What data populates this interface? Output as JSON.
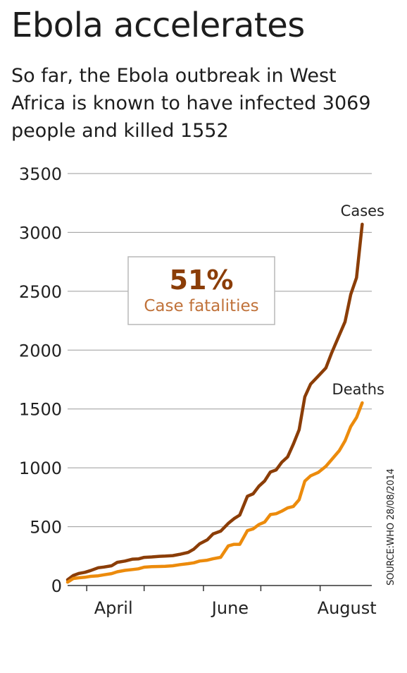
{
  "title": "Ebola accelerates",
  "subtitle": "So far, the Ebola outbreak in West Africa is known to have infected 3069 people and killed 1552",
  "source": "SOURCE:WHO 28/08/2014",
  "callout": {
    "value": "51%",
    "label": "Case fatalities",
    "value_color": "#8b3d07",
    "label_color": "#c0723a"
  },
  "chart_data": {
    "type": "line",
    "ylim": [
      0,
      3500
    ],
    "yticks": [
      0,
      500,
      1000,
      1500,
      2000,
      2500,
      3000,
      3500
    ],
    "xlim": [
      "2014-03-22",
      "2014-08-28"
    ],
    "xticks": [
      {
        "label": "April",
        "date": "2014-04-15"
      },
      {
        "label": "June",
        "date": "2014-06-15"
      },
      {
        "label": "August",
        "date": "2014-08-15"
      }
    ],
    "month_boundaries": [
      "2014-04-01",
      "2014-05-01",
      "2014-06-01",
      "2014-07-01",
      "2014-08-01"
    ],
    "grid": true,
    "series": [
      {
        "name": "Cases",
        "color": "#8b3d07",
        "points": [
          [
            "2014-03-22",
            49
          ],
          [
            "2014-03-25",
            86
          ],
          [
            "2014-03-28",
            103
          ],
          [
            "2014-03-31",
            112
          ],
          [
            "2014-04-03",
            127
          ],
          [
            "2014-04-07",
            151
          ],
          [
            "2014-04-10",
            157
          ],
          [
            "2014-04-14",
            168
          ],
          [
            "2014-04-17",
            197
          ],
          [
            "2014-04-21",
            208
          ],
          [
            "2014-04-25",
            224
          ],
          [
            "2014-04-28",
            226
          ],
          [
            "2014-05-01",
            239
          ],
          [
            "2014-05-05",
            243
          ],
          [
            "2014-05-09",
            248
          ],
          [
            "2014-05-12",
            250
          ],
          [
            "2014-05-16",
            254
          ],
          [
            "2014-05-20",
            266
          ],
          [
            "2014-05-24",
            281
          ],
          [
            "2014-05-27",
            309
          ],
          [
            "2014-05-30",
            354
          ],
          [
            "2014-06-03",
            388
          ],
          [
            "2014-06-06",
            438
          ],
          [
            "2014-06-10",
            462
          ],
          [
            "2014-06-14",
            528
          ],
          [
            "2014-06-17",
            568
          ],
          [
            "2014-06-20",
            599
          ],
          [
            "2014-06-24",
            759
          ],
          [
            "2014-06-27",
            779
          ],
          [
            "2014-06-30",
            844
          ],
          [
            "2014-07-03",
            888
          ],
          [
            "2014-07-06",
            964
          ],
          [
            "2014-07-09",
            982
          ],
          [
            "2014-07-12",
            1048
          ],
          [
            "2014-07-15",
            1093
          ],
          [
            "2014-07-18",
            1201
          ],
          [
            "2014-07-21",
            1323
          ],
          [
            "2014-07-24",
            1603
          ],
          [
            "2014-07-27",
            1711
          ],
          [
            "2014-07-31",
            1779
          ],
          [
            "2014-08-04",
            1848
          ],
          [
            "2014-08-07",
            1975
          ],
          [
            "2014-08-11",
            2127
          ],
          [
            "2014-08-14",
            2240
          ],
          [
            "2014-08-17",
            2473
          ],
          [
            "2014-08-20",
            2615
          ],
          [
            "2014-08-23",
            3069
          ]
        ]
      },
      {
        "name": "Deaths",
        "color": "#ec8b0c",
        "points": [
          [
            "2014-03-22",
            29
          ],
          [
            "2014-03-25",
            60
          ],
          [
            "2014-03-28",
            66
          ],
          [
            "2014-03-31",
            70
          ],
          [
            "2014-04-03",
            78
          ],
          [
            "2014-04-07",
            83
          ],
          [
            "2014-04-10",
            91
          ],
          [
            "2014-04-14",
            101
          ],
          [
            "2014-04-17",
            117
          ],
          [
            "2014-04-21",
            129
          ],
          [
            "2014-04-25",
            136
          ],
          [
            "2014-04-28",
            142
          ],
          [
            "2014-05-01",
            156
          ],
          [
            "2014-05-05",
            160
          ],
          [
            "2014-05-09",
            162
          ],
          [
            "2014-05-12",
            163
          ],
          [
            "2014-05-16",
            168
          ],
          [
            "2014-05-20",
            178
          ],
          [
            "2014-05-24",
            186
          ],
          [
            "2014-05-27",
            193
          ],
          [
            "2014-05-30",
            208
          ],
          [
            "2014-06-03",
            215
          ],
          [
            "2014-06-06",
            227
          ],
          [
            "2014-06-10",
            240
          ],
          [
            "2014-06-14",
            337
          ],
          [
            "2014-06-17",
            350
          ],
          [
            "2014-06-20",
            350
          ],
          [
            "2014-06-24",
            467
          ],
          [
            "2014-06-27",
            481
          ],
          [
            "2014-06-30",
            518
          ],
          [
            "2014-07-03",
            539
          ],
          [
            "2014-07-06",
            603
          ],
          [
            "2014-07-09",
            610
          ],
          [
            "2014-07-12",
            632
          ],
          [
            "2014-07-15",
            660
          ],
          [
            "2014-07-18",
            672
          ],
          [
            "2014-07-21",
            729
          ],
          [
            "2014-07-24",
            887
          ],
          [
            "2014-07-27",
            932
          ],
          [
            "2014-07-31",
            961
          ],
          [
            "2014-08-04",
            1013
          ],
          [
            "2014-08-07",
            1069
          ],
          [
            "2014-08-11",
            1145
          ],
          [
            "2014-08-14",
            1229
          ],
          [
            "2014-08-17",
            1350
          ],
          [
            "2014-08-20",
            1427
          ],
          [
            "2014-08-23",
            1552
          ]
        ]
      }
    ]
  }
}
